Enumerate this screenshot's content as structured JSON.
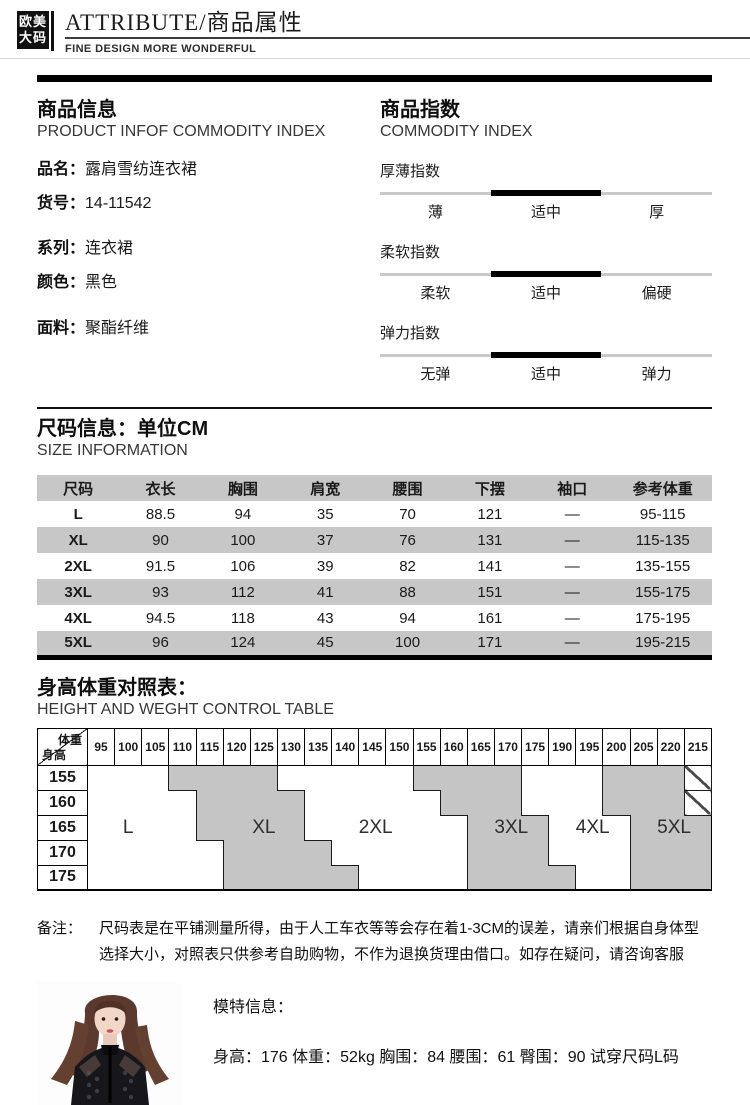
{
  "header": {
    "logo_line1": "欧美",
    "logo_line2": "大码",
    "title": "ATTRIBUTE/商品属性",
    "subtitle": "FINE DESIGN MORE WONDERFUL"
  },
  "product_info": {
    "title": "商品信息",
    "subtitle_en": "PRODUCT INFOF COMMODITY INDEX",
    "fields": [
      {
        "label": "品名：",
        "value": "露肩雪纺连衣裙"
      },
      {
        "label": "货号：",
        "value": "14-11542"
      },
      {
        "label": "系列：",
        "value": "连衣裙"
      },
      {
        "label": "颜色：",
        "value": "黑色"
      },
      {
        "label": "面料：",
        "value": "聚酯纤维"
      }
    ]
  },
  "commodity_index": {
    "title": "商品指数",
    "subtitle_en": "COMMODITY INDEX",
    "indices": [
      {
        "label": "厚薄指数",
        "options": [
          "薄",
          "适中",
          "厚"
        ],
        "selected": "适中"
      },
      {
        "label": "柔软指数",
        "options": [
          "柔软",
          "适中",
          "偏硬"
        ],
        "selected": "适中"
      },
      {
        "label": "弹力指数",
        "options": [
          "无弹",
          "适中",
          "弹力"
        ],
        "selected": "适中"
      }
    ]
  },
  "size_info": {
    "title": "尺码信息：单位CM",
    "subtitle_en": "SIZE INFORMATION",
    "columns": [
      "尺码",
      "衣长",
      "胸围",
      "肩宽",
      "腰围",
      "下摆",
      "袖口",
      "参考体重"
    ],
    "rows": [
      [
        "L",
        "88.5",
        "94",
        "35",
        "70",
        "121",
        "—",
        "95-115"
      ],
      [
        "XL",
        "90",
        "100",
        "37",
        "76",
        "131",
        "—",
        "115-135"
      ],
      [
        "2XL",
        "91.5",
        "106",
        "39",
        "82",
        "141",
        "—",
        "135-155"
      ],
      [
        "3XL",
        "93",
        "112",
        "41",
        "88",
        "151",
        "—",
        "155-175"
      ],
      [
        "4XL",
        "94.5",
        "118",
        "43",
        "94",
        "161",
        "—",
        "175-195"
      ],
      [
        "5XL",
        "96",
        "124",
        "45",
        "100",
        "171",
        "—",
        "195-215"
      ]
    ]
  },
  "height_weight": {
    "title": "身高体重对照表：",
    "subtitle_en": "HEIGHT AND WEGHT CONTROL TABLE",
    "corner_top": "体重",
    "corner_bottom": "身高",
    "weight_columns": [
      "95",
      "100",
      "105",
      "110",
      "115",
      "120",
      "125",
      "130",
      "135",
      "140",
      "145",
      "150",
      "155",
      "160",
      "165",
      "170",
      "175",
      "190",
      "195",
      "200",
      "205",
      "220",
      "215"
    ],
    "height_rows": [
      "155",
      "160",
      "165",
      "170",
      "175"
    ],
    "fills": [
      "wwwggggwwwwwggggwwwgggh",
      "wwwwggggwwwwwgggwwwgggh",
      "wwwwggggwwwwwwgggwwwggg",
      "wwwwwggggwwwwwgggwwwggg",
      "wwwwwgggggwwwwggggwwggg"
    ],
    "zone_labels": [
      {
        "label": "L",
        "row_index": 2,
        "col_index": 1
      },
      {
        "label": "XL",
        "row_index": 2,
        "col_index": 6
      },
      {
        "label": "2XL",
        "row_index": 2,
        "col_index": 10
      },
      {
        "label": "3XL",
        "row_index": 2,
        "col_index": 15
      },
      {
        "label": "4XL",
        "row_index": 2,
        "col_index": 18
      },
      {
        "label": "5XL",
        "row_index": 2,
        "col_index": 21
      }
    ]
  },
  "note": {
    "label": "备注：",
    "text": "尺码表是在平铺测量所得，由于人工车衣等等会存在着1-3CM的误差，请亲们根据自身体型选择大小，对照表只供参考自助购物，不作为退换货理由借口。如存在疑问，请咨询客服"
  },
  "model_info": {
    "title": "模特信息：",
    "stats": "身高：176 体重：52kg 胸围：84 腰围：61 臀围：90 试穿尺码L码",
    "photo_alt": "model-photo"
  },
  "colors": {
    "accent_black": "#000000",
    "table_gray": "#c7c7c7",
    "zone_gray": "#c5c5c5",
    "track_gray": "#c9c9c9"
  }
}
